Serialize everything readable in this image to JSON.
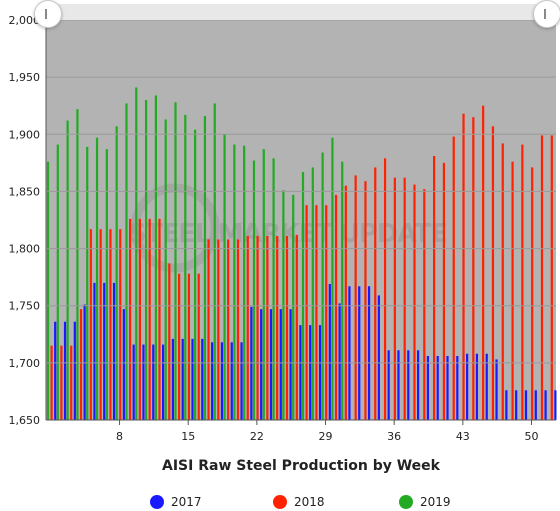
{
  "chart_data": {
    "type": "bar",
    "title": "AISI Raw Steel Production by Week",
    "xlabel": "",
    "ylabel": "",
    "ylim": [
      1650,
      2000
    ],
    "y_ticks": [
      "1,650",
      "1,700",
      "1,750",
      "1,800",
      "1,850",
      "1,900",
      "1,950",
      "2,000"
    ],
    "x_ticks": [
      "8",
      "15",
      "22",
      "29",
      "36",
      "43",
      "50"
    ],
    "x_tick_weeks": [
      8,
      15,
      22,
      29,
      36,
      43,
      50
    ],
    "x_range": [
      0.5,
      52.5
    ],
    "watermark": "STEEL MARKET UPDATE",
    "series": [
      {
        "name": "2017",
        "color": "#1a1aff",
        "weeks": [
          1,
          2,
          3,
          4,
          5,
          6,
          7,
          8,
          9,
          10,
          11,
          12,
          13,
          14,
          15,
          16,
          17,
          18,
          19,
          20,
          21,
          22,
          23,
          24,
          25,
          26,
          27,
          28,
          29,
          30,
          31,
          32,
          33,
          34,
          35,
          36,
          37,
          38,
          39,
          40,
          41,
          42,
          43,
          44,
          45,
          46,
          47,
          48,
          49,
          50,
          51,
          52
        ],
        "values": [
          1736,
          1736,
          1736,
          1751,
          1770,
          1770,
          1770,
          1747,
          1716,
          1716,
          1716,
          1716,
          1721,
          1721,
          1721,
          1721,
          1718,
          1718,
          1718,
          1718,
          1749,
          1747,
          1747,
          1747,
          1747,
          1733,
          1733,
          1733,
          1769,
          1752,
          1767,
          1767,
          1767,
          1759,
          1711,
          1711,
          1711,
          1711,
          1706,
          1706,
          1706,
          1706,
          1708,
          1708,
          1708,
          1703,
          1676,
          1676,
          1676,
          1676,
          1676,
          1676
        ]
      },
      {
        "name": "2018",
        "color": "#ff2200",
        "weeks": [
          1,
          2,
          3,
          4,
          5,
          6,
          7,
          8,
          9,
          10,
          11,
          12,
          13,
          14,
          15,
          16,
          17,
          18,
          19,
          20,
          21,
          22,
          23,
          24,
          25,
          26,
          27,
          28,
          29,
          30,
          31,
          32,
          33,
          34,
          35,
          36,
          37,
          38,
          39,
          40,
          41,
          42,
          43,
          44,
          45,
          46,
          47,
          48,
          49,
          50,
          51,
          52
        ],
        "values": [
          1715,
          1715,
          1715,
          1747,
          1817,
          1817,
          1817,
          1817,
          1826,
          1826,
          1826,
          1826,
          1787,
          1778,
          1778,
          1778,
          1808,
          1808,
          1808,
          1808,
          1811,
          1811,
          1811,
          1811,
          1811,
          1812,
          1838,
          1838,
          1838,
          1847,
          1855,
          1864,
          1859,
          1871,
          1879,
          1862,
          1862,
          1856,
          1852,
          1881,
          1875,
          1898,
          1918,
          1915,
          1925,
          1907,
          1892,
          1876,
          1891,
          1871,
          1899,
          1899
        ]
      },
      {
        "name": "2019",
        "color": "#22aa22",
        "weeks": [
          1,
          2,
          3,
          4,
          5,
          6,
          7,
          8,
          9,
          10,
          11,
          12,
          13,
          14,
          15,
          16,
          17,
          18,
          19,
          20,
          21,
          22,
          23,
          24,
          25,
          26,
          27,
          28,
          29,
          30,
          31
        ],
        "values": [
          1876,
          1891,
          1912,
          1922,
          1889,
          1897,
          1887,
          1907,
          1927,
          1941,
          1930,
          1934,
          1913,
          1928,
          1917,
          1904,
          1916,
          1927,
          1900,
          1891,
          1890,
          1877,
          1887,
          1879,
          1851,
          1847,
          1867,
          1871,
          1884,
          1897,
          1876
        ]
      }
    ]
  },
  "legend": {
    "items": [
      {
        "label": "2017",
        "color": "#1a1aff"
      },
      {
        "label": "2018",
        "color": "#ff2200"
      },
      {
        "label": "2019",
        "color": "#22aa22"
      }
    ]
  },
  "colors": {
    "plot_background": "#b3b3b3",
    "watermark": "#9a9a9a"
  },
  "icons": {
    "scroll_left": "range-handle-icon",
    "scroll_right": "range-handle-icon"
  }
}
